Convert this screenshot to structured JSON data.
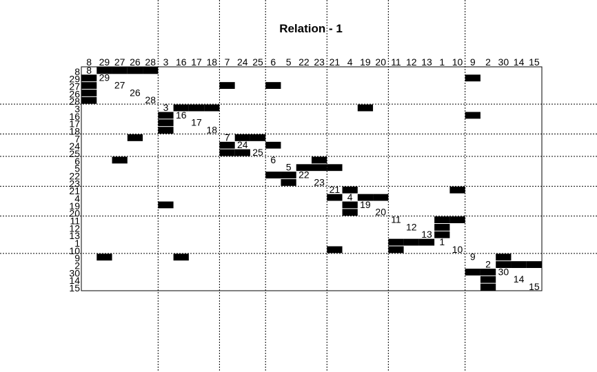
{
  "chart_data": {
    "type": "heatmap",
    "title": "Relation -  1",
    "order": [
      "8",
      "29",
      "27",
      "26",
      "28",
      "3",
      "16",
      "17",
      "18",
      "7",
      "24",
      "25",
      "6",
      "5",
      "22",
      "23",
      "21",
      "4",
      "19",
      "20",
      "11",
      "12",
      "13",
      "1",
      "10",
      "9",
      "2",
      "30",
      "14",
      "15"
    ],
    "group_boundaries_after_index": [
      4,
      8,
      11,
      15,
      19,
      24
    ],
    "cells": [
      [
        "8",
        "29"
      ],
      [
        "8",
        "27"
      ],
      [
        "8",
        "26"
      ],
      [
        "8",
        "28"
      ],
      [
        "29",
        "8"
      ],
      [
        "29",
        "9"
      ],
      [
        "27",
        "8"
      ],
      [
        "27",
        "7"
      ],
      [
        "27",
        "6"
      ],
      [
        "26",
        "8"
      ],
      [
        "28",
        "8"
      ],
      [
        "3",
        "16"
      ],
      [
        "3",
        "17"
      ],
      [
        "3",
        "18"
      ],
      [
        "3",
        "19"
      ],
      [
        "16",
        "3"
      ],
      [
        "16",
        "9"
      ],
      [
        "17",
        "3"
      ],
      [
        "18",
        "3"
      ],
      [
        "7",
        "26"
      ],
      [
        "7",
        "24"
      ],
      [
        "7",
        "25"
      ],
      [
        "24",
        "7"
      ],
      [
        "24",
        "6"
      ],
      [
        "25",
        "7"
      ],
      [
        "25",
        "24"
      ],
      [
        "6",
        "27"
      ],
      [
        "6",
        "23"
      ],
      [
        "5",
        "22"
      ],
      [
        "5",
        "23"
      ],
      [
        "5",
        "21"
      ],
      [
        "22",
        "6"
      ],
      [
        "22",
        "5"
      ],
      [
        "23",
        "5"
      ],
      [
        "21",
        "4"
      ],
      [
        "21",
        "10"
      ],
      [
        "4",
        "21"
      ],
      [
        "4",
        "19"
      ],
      [
        "4",
        "20"
      ],
      [
        "19",
        "3"
      ],
      [
        "19",
        "4"
      ],
      [
        "20",
        "4"
      ],
      [
        "11",
        "1"
      ],
      [
        "11",
        "10"
      ],
      [
        "12",
        "1"
      ],
      [
        "13",
        "1"
      ],
      [
        "1",
        "11"
      ],
      [
        "1",
        "12"
      ],
      [
        "1",
        "13"
      ],
      [
        "10",
        "21"
      ],
      [
        "10",
        "11"
      ],
      [
        "9",
        "29"
      ],
      [
        "9",
        "16"
      ],
      [
        "9",
        "30"
      ],
      [
        "2",
        "30"
      ],
      [
        "2",
        "14"
      ],
      [
        "2",
        "15"
      ],
      [
        "30",
        "9"
      ],
      [
        "30",
        "2"
      ],
      [
        "14",
        "2"
      ],
      [
        "15",
        "2"
      ]
    ],
    "legend": "none",
    "grid": "dotted group separators"
  }
}
